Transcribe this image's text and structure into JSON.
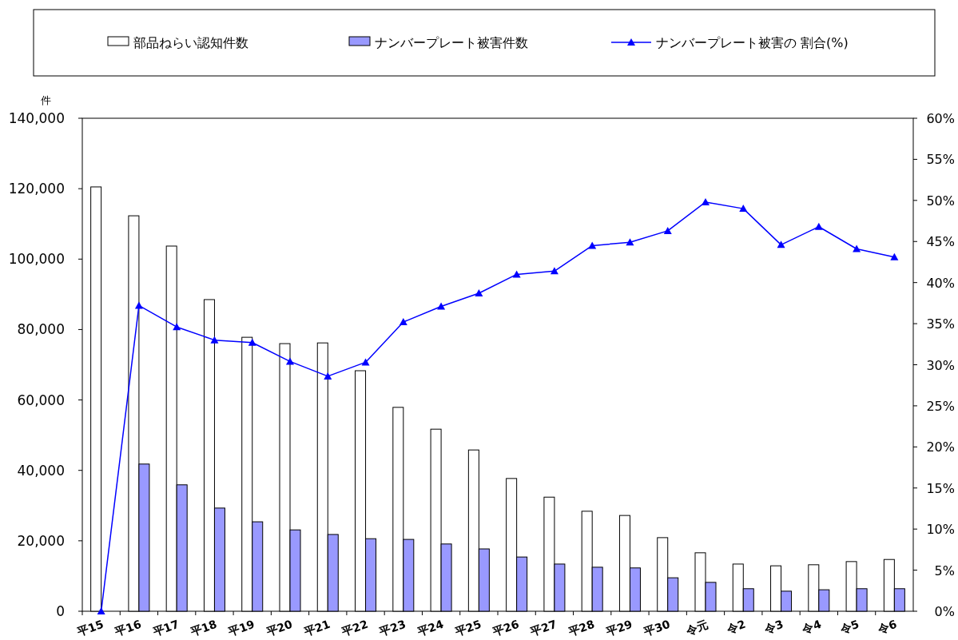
{
  "chart_data": {
    "type": "bar",
    "categories": [
      "平15",
      "平16",
      "平17",
      "平18",
      "平19",
      "平20",
      "平21",
      "平22",
      "平23",
      "平24",
      "平25",
      "平26",
      "平27",
      "平28",
      "平29",
      "平30",
      "令元",
      "令2",
      "令3",
      "令4",
      "令5",
      "令6"
    ],
    "series": [
      {
        "name": "部品ねらい認知件数",
        "color": "#ffffff",
        "values": [
          120500,
          112300,
          103700,
          88500,
          77800,
          76000,
          76200,
          68300,
          57900,
          51700,
          45800,
          37700,
          32400,
          28400,
          27200,
          20900,
          16600,
          13400,
          12900,
          13200,
          14100,
          14700
        ]
      },
      {
        "name": "ナンバープレート被害件数",
        "color": "#9999ff",
        "values": [
          0,
          41800,
          35900,
          29300,
          25400,
          23100,
          21800,
          20600,
          20400,
          19100,
          17700,
          15400,
          13400,
          12500,
          12300,
          9500,
          8200,
          6400,
          5700,
          6100,
          6400,
          6400
        ]
      },
      {
        "name": "ナンバープレート被害の 割合(%)",
        "type": "line",
        "axis": "y2",
        "color": "#0000ff",
        "values": [
          0,
          37.2,
          34.6,
          33.0,
          32.7,
          30.4,
          28.6,
          30.3,
          35.2,
          37.1,
          38.7,
          41.0,
          41.4,
          44.5,
          44.9,
          46.3,
          49.8,
          49.0,
          44.6,
          46.8,
          44.1,
          43.1
        ]
      }
    ],
    "ylabel": "件",
    "ylim": [
      0,
      140000
    ],
    "yticks": [
      {
        "value": 0,
        "label": "0"
      },
      {
        "value": 20000,
        "label": "20,000"
      },
      {
        "value": 40000,
        "label": "40,000"
      },
      {
        "value": 60000,
        "label": "60,000"
      },
      {
        "value": 80000,
        "label": "80,000"
      },
      {
        "value": 100000,
        "label": "100,000"
      },
      {
        "value": 120000,
        "label": "120,000"
      },
      {
        "value": 140000,
        "label": "140,000"
      }
    ],
    "y2lim": [
      0,
      60
    ],
    "y2ticks": [
      {
        "value": 0,
        "label": "0%"
      },
      {
        "value": 5,
        "label": "5%"
      },
      {
        "value": 10,
        "label": "10%"
      },
      {
        "value": 15,
        "label": "15%"
      },
      {
        "value": 20,
        "label": "20%"
      },
      {
        "value": 25,
        "label": "25%"
      },
      {
        "value": 30,
        "label": "30%"
      },
      {
        "value": 35,
        "label": "35%"
      },
      {
        "value": 40,
        "label": "40%"
      },
      {
        "value": 45,
        "label": "45%"
      },
      {
        "value": 50,
        "label": "50%"
      },
      {
        "value": 55,
        "label": "55%"
      },
      {
        "value": 60,
        "label": "60%"
      }
    ],
    "legend": "top",
    "marker": "triangle"
  }
}
